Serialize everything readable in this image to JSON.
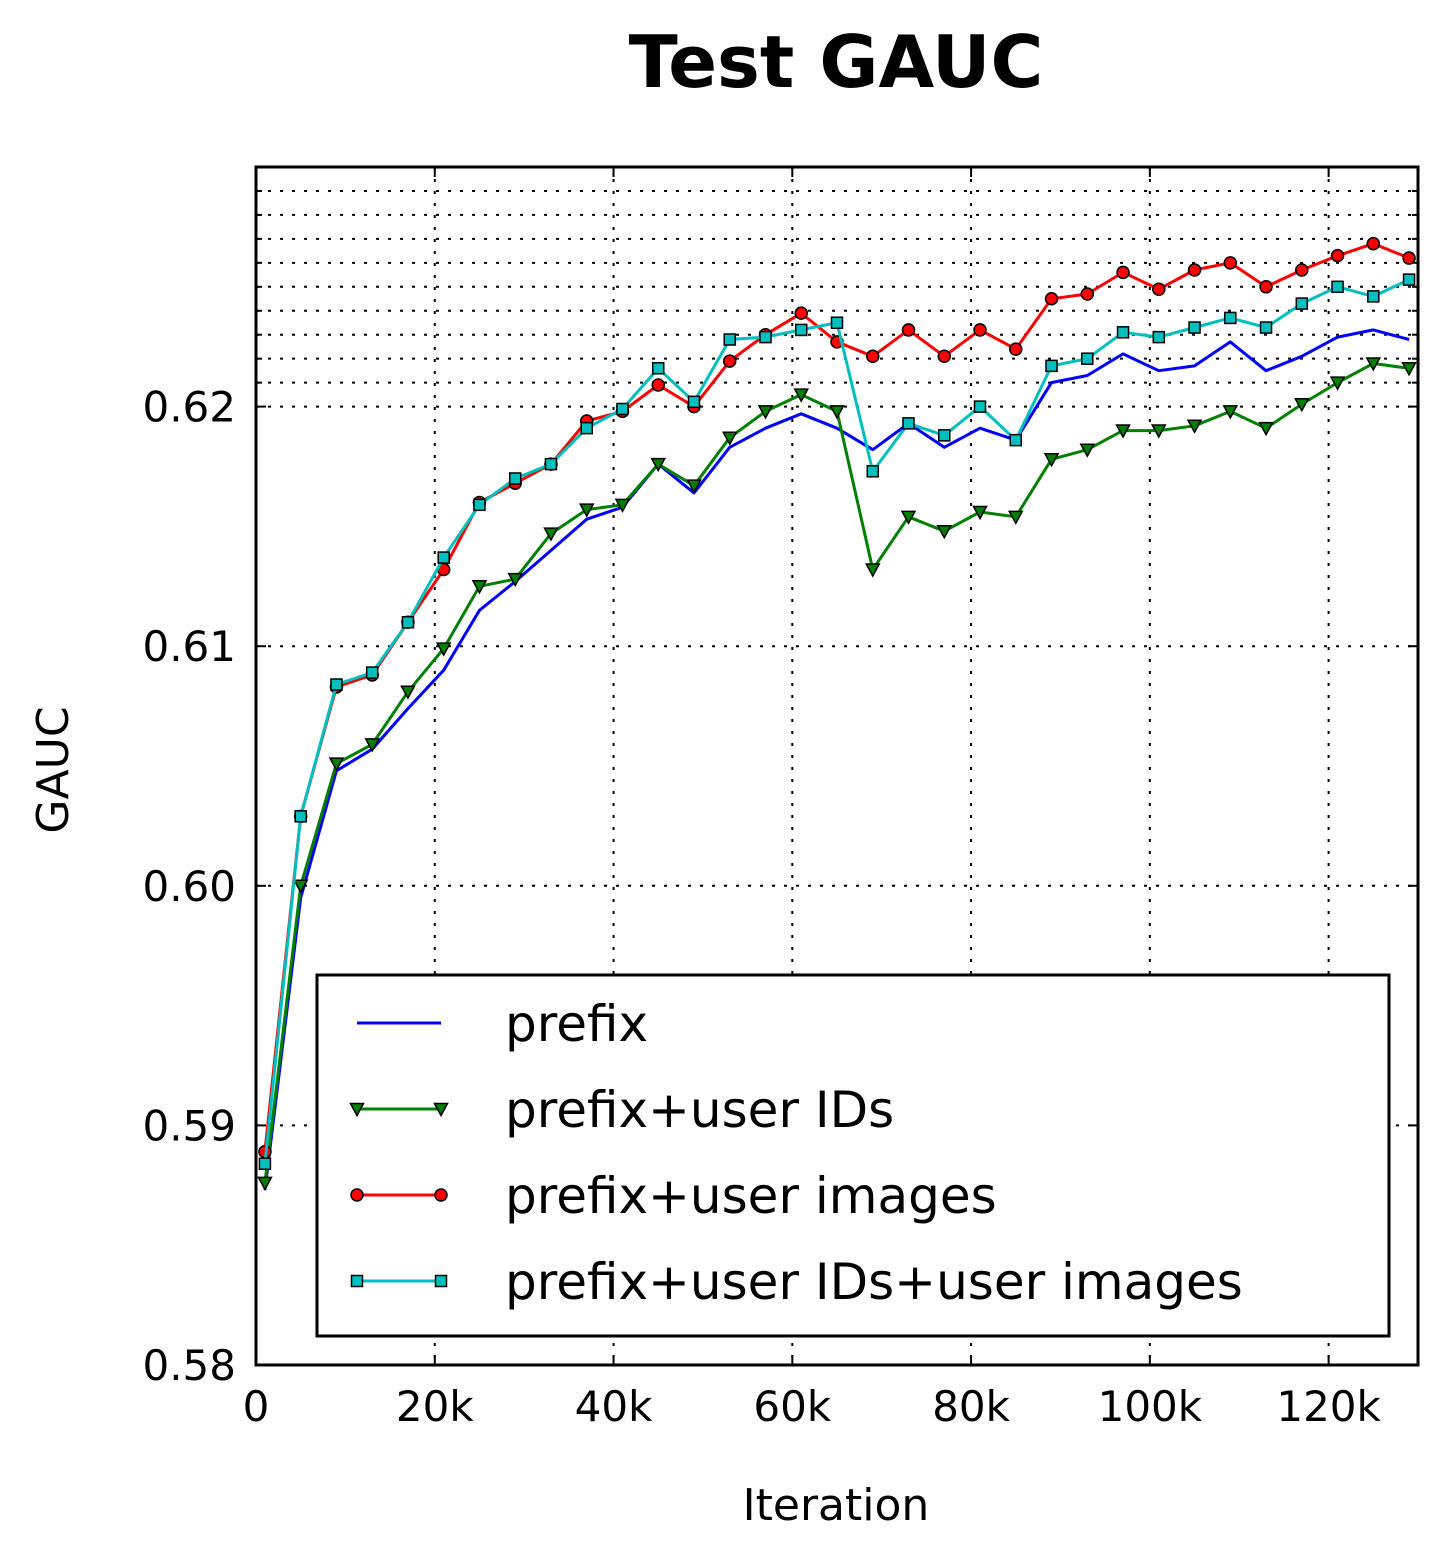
{
  "chart_data": {
    "type": "line",
    "title": "Test GAUC",
    "xlabel": "Iteration",
    "ylabel": "GAUC",
    "xlim": [
      0,
      130000
    ],
    "ylim": [
      0.58,
      0.63
    ],
    "xticks": [
      0,
      20000,
      40000,
      60000,
      80000,
      100000,
      120000
    ],
    "xtick_labels": [
      "0",
      "20k",
      "40k",
      "60k",
      "80k",
      "100k",
      "120k"
    ],
    "yticks": [
      0.58,
      0.59,
      0.6,
      0.61,
      0.62
    ],
    "ytick_labels": [
      "0.58",
      "0.59",
      "0.60",
      "0.61",
      "0.62"
    ],
    "minor_grid_y": [
      0.621,
      0.622,
      0.623,
      0.624,
      0.625,
      0.626,
      0.627,
      0.628,
      0.629
    ],
    "grid": true,
    "legend_position": "lower-right",
    "x": [
      1000,
      5000,
      9000,
      13000,
      17000,
      21000,
      25000,
      29000,
      33000,
      37000,
      41000,
      45000,
      49000,
      53000,
      57000,
      61000,
      65000,
      69000,
      73000,
      77000,
      81000,
      85000,
      89000,
      93000,
      97000,
      101000,
      105000,
      109000,
      113000,
      117000,
      121000,
      125000,
      129000
    ],
    "series": [
      {
        "name": "prefix",
        "color": "#0000ff",
        "marker": "none",
        "values": [
          0.5873,
          0.5995,
          0.6048,
          0.6057,
          0.6074,
          0.609,
          0.6115,
          0.6127,
          0.614,
          0.6153,
          0.6158,
          0.6176,
          0.6164,
          0.6183,
          0.6191,
          0.6197,
          0.6191,
          0.6182,
          0.6193,
          0.6183,
          0.6191,
          0.6186,
          0.621,
          0.6213,
          0.6222,
          0.6215,
          0.6217,
          0.6227,
          0.6215,
          0.6221,
          0.6229,
          0.6232,
          0.6228
        ]
      },
      {
        "name": "prefix+user IDs",
        "color": "#008000",
        "marker": "triangle-down",
        "values": [
          0.5876,
          0.6,
          0.6051,
          0.6059,
          0.6081,
          0.6099,
          0.6125,
          0.6128,
          0.6147,
          0.6157,
          0.6159,
          0.6176,
          0.6167,
          0.6187,
          0.6198,
          0.6205,
          0.6198,
          0.6132,
          0.6154,
          0.6148,
          0.6156,
          0.6154,
          0.6178,
          0.6182,
          0.619,
          0.619,
          0.6192,
          0.6198,
          0.6191,
          0.6201,
          0.621,
          0.6218,
          0.6216
        ]
      },
      {
        "name": "prefix+user images",
        "color": "#ff0000",
        "marker": "circle",
        "values": [
          0.5889,
          0.6029,
          0.6083,
          0.6088,
          0.611,
          0.6132,
          0.616,
          0.6168,
          0.6176,
          0.6194,
          0.6198,
          0.6209,
          0.62,
          0.6219,
          0.623,
          0.6239,
          0.6227,
          0.6221,
          0.6232,
          0.6221,
          0.6232,
          0.6224,
          0.6245,
          0.6247,
          0.6256,
          0.6249,
          0.6257,
          0.626,
          0.625,
          0.6257,
          0.6263,
          0.6268,
          0.6262
        ]
      },
      {
        "name": "prefix+user IDs+user images",
        "color": "#00bfbf",
        "marker": "square",
        "values": [
          0.5884,
          0.6029,
          0.6084,
          0.6089,
          0.611,
          0.6137,
          0.6159,
          0.617,
          0.6176,
          0.6191,
          0.6199,
          0.6216,
          0.6202,
          0.6228,
          0.6229,
          0.6232,
          0.6235,
          0.6173,
          0.6193,
          0.6188,
          0.62,
          0.6186,
          0.6217,
          0.622,
          0.6231,
          0.6229,
          0.6233,
          0.6237,
          0.6233,
          0.6243,
          0.625,
          0.6246,
          0.6253
        ]
      }
    ]
  }
}
